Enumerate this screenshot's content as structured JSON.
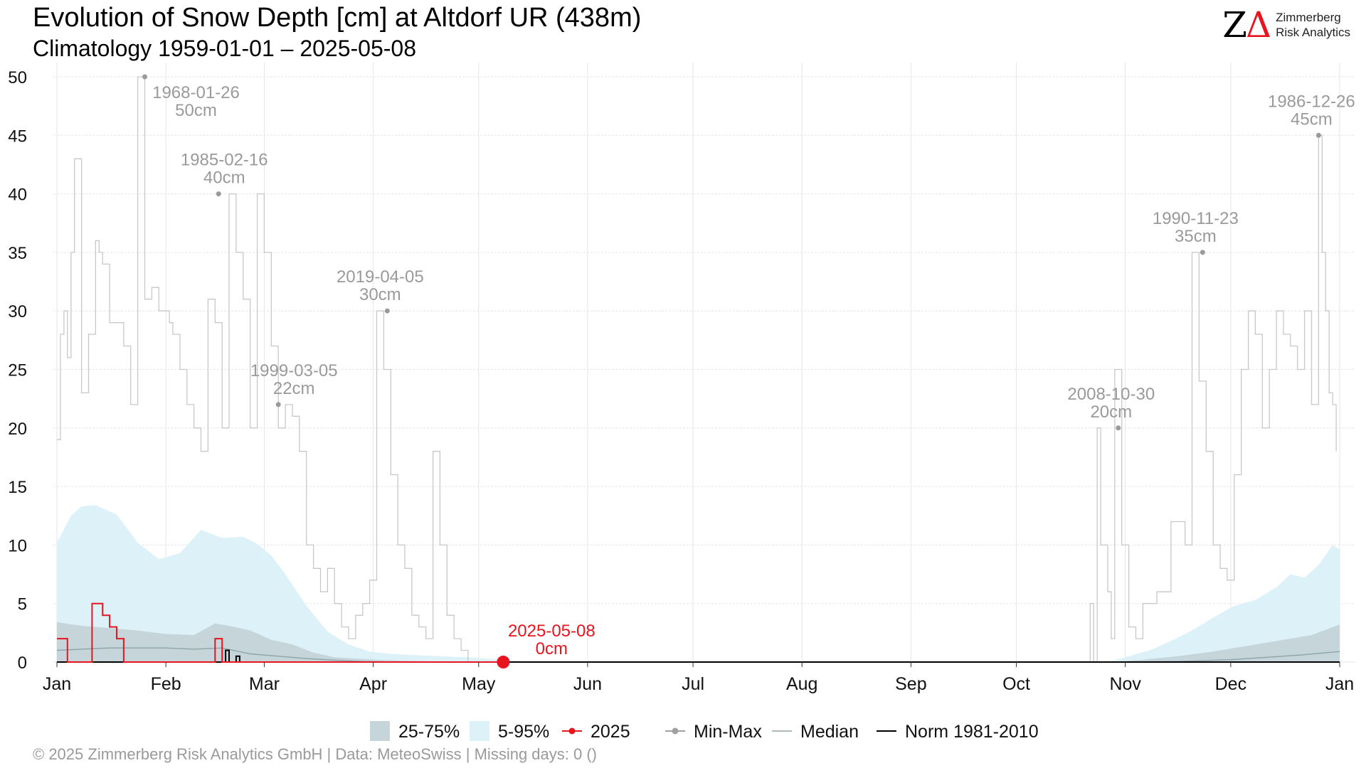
{
  "header": {
    "title": "Evolution of Snow Depth [cm] at Altdorf  UR (438m)",
    "subtitle": "Climatology 1959-01-01 – 2025-05-08"
  },
  "logo": {
    "line1": "Zimmerberg",
    "line2": "Risk Analytics",
    "colors": {
      "z": "#000000",
      "delta": "#e8141e"
    }
  },
  "caption": "©  2025 Zimmerberg Risk Analytics GmbH | Data: MeteoSwiss | Missing days: 0 ()",
  "legend": {
    "items": [
      {
        "key": "q25_75",
        "label": "25-75%",
        "color": "#c5d5da"
      },
      {
        "key": "q5_95",
        "label": "5-95%",
        "color": "#ddf1f9"
      },
      {
        "key": "current",
        "label": "2025",
        "color": "#e8141e"
      },
      {
        "key": "minmax",
        "label": "Min-Max",
        "color": "#a0a0a0"
      },
      {
        "key": "median",
        "label": "Median",
        "color": "#8ea4aa"
      },
      {
        "key": "norm",
        "label": "Norm 1981-2010",
        "color": "#000000"
      }
    ]
  },
  "chart_data": {
    "type": "line",
    "xlabel": "",
    "ylabel": "",
    "x_unit": "day of year",
    "xlim": [
      1,
      366
    ],
    "ylim": [
      0,
      50
    ],
    "y_ticks": [
      0,
      5,
      10,
      15,
      20,
      25,
      30,
      35,
      40,
      45,
      50
    ],
    "x_ticks": [
      {
        "label": "Jan",
        "day": 1
      },
      {
        "label": "Feb",
        "day": 32
      },
      {
        "label": "Mar",
        "day": 60
      },
      {
        "label": "Apr",
        "day": 91
      },
      {
        "label": "May",
        "day": 121
      },
      {
        "label": "Jun",
        "day": 152
      },
      {
        "label": "Jul",
        "day": 182
      },
      {
        "label": "Aug",
        "day": 213
      },
      {
        "label": "Sep",
        "day": 244
      },
      {
        "label": "Oct",
        "day": 274
      },
      {
        "label": "Nov",
        "day": 305
      },
      {
        "label": "Dec",
        "day": 335
      },
      {
        "label": "Jan",
        "day": 366
      }
    ],
    "grid": true,
    "legend_position": "bottom",
    "series": [
      {
        "name": "5-95%",
        "kind": "band",
        "color": "#ddf1f9",
        "x": [
          1,
          5,
          8,
          12,
          18,
          24,
          30,
          36,
          42,
          48,
          54,
          58,
          62,
          66,
          72,
          78,
          84,
          90,
          96,
          102,
          110,
          118,
          128,
          135,
          300,
          306,
          312,
          318,
          324,
          330,
          336,
          342,
          348,
          352,
          356,
          360,
          364,
          366
        ],
        "upper": [
          10.2,
          12.5,
          13.3,
          13.4,
          12.6,
          10.2,
          8.8,
          9.3,
          11.3,
          10.6,
          10.7,
          10.1,
          9.1,
          7.5,
          4.8,
          2.6,
          1.5,
          0.9,
          0.7,
          0.6,
          0.5,
          0.4,
          0.2,
          0.0,
          0.0,
          0.5,
          1.0,
          1.8,
          2.7,
          3.8,
          4.8,
          5.3,
          6.4,
          7.5,
          7.2,
          8.3,
          10.0,
          9.6
        ],
        "lower": [
          0,
          0,
          0,
          0,
          0,
          0,
          0,
          0,
          0,
          0,
          0,
          0,
          0,
          0,
          0,
          0,
          0,
          0,
          0,
          0,
          0,
          0,
          0,
          0,
          0,
          0,
          0,
          0,
          0,
          0,
          0,
          0,
          0,
          0,
          0,
          0,
          0,
          0
        ]
      },
      {
        "name": "25-75%",
        "kind": "band",
        "color": "#c5d5da",
        "x": [
          1,
          8,
          16,
          24,
          32,
          40,
          46,
          50,
          56,
          62,
          68,
          74,
          80,
          86,
          92,
          100,
          110,
          118,
          300,
          310,
          320,
          330,
          340,
          350,
          358,
          366
        ],
        "upper": [
          3.4,
          3.1,
          2.9,
          2.7,
          2.4,
          2.3,
          3.3,
          3.1,
          2.7,
          1.9,
          1.5,
          0.8,
          0.4,
          0.3,
          0.2,
          0.1,
          0.05,
          0,
          0,
          0.2,
          0.5,
          0.9,
          1.4,
          1.9,
          2.3,
          3.2
        ],
        "lower": [
          0,
          0,
          0,
          0,
          0,
          0,
          0,
          0,
          0,
          0,
          0,
          0,
          0,
          0,
          0,
          0,
          0,
          0,
          0,
          0,
          0,
          0,
          0,
          0,
          0,
          0
        ]
      },
      {
        "name": "Median",
        "kind": "line",
        "color": "#8ea4aa",
        "x": [
          1,
          8,
          16,
          24,
          32,
          40,
          48,
          56,
          64,
          72,
          80,
          88,
          96,
          110,
          300,
          320,
          335,
          345,
          355,
          366
        ],
        "values": [
          1.0,
          1.1,
          1.2,
          1.2,
          1.2,
          1.1,
          1.2,
          0.7,
          0.5,
          0.3,
          0.15,
          0.05,
          0,
          0,
          0,
          0.05,
          0.2,
          0.4,
          0.6,
          0.9
        ]
      },
      {
        "name": "Norm 1981-2010",
        "kind": "step",
        "color": "#000000",
        "x": [
          1,
          48,
          49,
          50,
          51,
          52,
          53,
          54,
          366
        ],
        "values": [
          0,
          0,
          1,
          0,
          0,
          0.5,
          0,
          0,
          0
        ]
      },
      {
        "name": "Min-Max",
        "kind": "step",
        "color": "#c8c8c8",
        "x": [
          1,
          2,
          3,
          4,
          5,
          6,
          8,
          10,
          12,
          13,
          14,
          16,
          18,
          20,
          22,
          24,
          26,
          28,
          30,
          33,
          34,
          36,
          38,
          40,
          42,
          44,
          46,
          48,
          50,
          52,
          54,
          56,
          58,
          60,
          62,
          64,
          66,
          68,
          70,
          72,
          74,
          76,
          78,
          80,
          82,
          84,
          86,
          88,
          90,
          92,
          94,
          96,
          98,
          100,
          102,
          104,
          106,
          108,
          110,
          112,
          114,
          116,
          118,
          120,
          122,
          124,
          126,
          280,
          295,
          296,
          297,
          298,
          300,
          301,
          302,
          304,
          306,
          308,
          310,
          314,
          318,
          322,
          324,
          326,
          328,
          330,
          332,
          334,
          336,
          338,
          340,
          342,
          344,
          346,
          348,
          350,
          352,
          354,
          356,
          358,
          360,
          361,
          362,
          363,
          364,
          365
        ],
        "values": [
          19,
          28,
          30,
          26,
          35,
          43,
          23,
          28,
          36,
          35,
          34,
          29,
          29,
          27,
          22,
          50,
          31,
          32,
          30,
          29,
          28,
          25,
          22,
          20,
          18,
          31,
          29,
          20,
          40,
          35,
          31,
          20,
          40,
          35,
          27,
          20,
          22,
          21,
          18,
          10,
          8,
          6,
          8,
          5,
          3,
          2,
          4,
          5,
          7,
          30,
          25,
          16,
          10,
          8,
          4,
          3,
          2,
          18,
          10,
          4,
          2,
          1,
          0,
          0,
          0,
          0,
          0,
          0,
          5,
          0,
          20,
          10,
          6,
          2,
          25,
          10,
          3,
          2,
          5,
          6,
          12,
          10,
          35,
          24,
          18,
          10,
          8,
          7,
          16,
          25,
          30,
          28,
          20,
          25,
          30,
          28,
          27,
          25,
          30,
          22,
          45,
          35,
          30,
          23,
          22,
          18
        ]
      },
      {
        "name": "2025",
        "kind": "step",
        "color": "#e8141e",
        "x": [
          1,
          4,
          11,
          12,
          14,
          16,
          18,
          20,
          46,
          48,
          49,
          128
        ],
        "values": [
          2,
          0,
          5,
          5,
          4,
          3,
          2,
          0,
          2,
          0,
          0,
          0
        ]
      }
    ],
    "annotations": [
      {
        "date": "1968-01-26",
        "value": "50cm",
        "day": 26,
        "y": 50
      },
      {
        "date": "1985-02-16",
        "value": "40cm",
        "day": 47,
        "y": 40
      },
      {
        "date": "1999-03-05",
        "value": "22cm",
        "day": 64,
        "y": 22
      },
      {
        "date": "2019-04-05",
        "value": "30cm",
        "day": 95,
        "y": 30
      },
      {
        "date": "2008-10-30",
        "value": "20cm",
        "day": 303,
        "y": 20
      },
      {
        "date": "1990-11-23",
        "value": "35cm",
        "day": 327,
        "y": 35
      },
      {
        "date": "1986-12-26",
        "value": "45cm",
        "day": 360,
        "y": 45
      }
    ],
    "current_point": {
      "date": "2025-05-08",
      "value": "0cm",
      "day": 128,
      "y": 0,
      "color": "#e8141e"
    }
  }
}
